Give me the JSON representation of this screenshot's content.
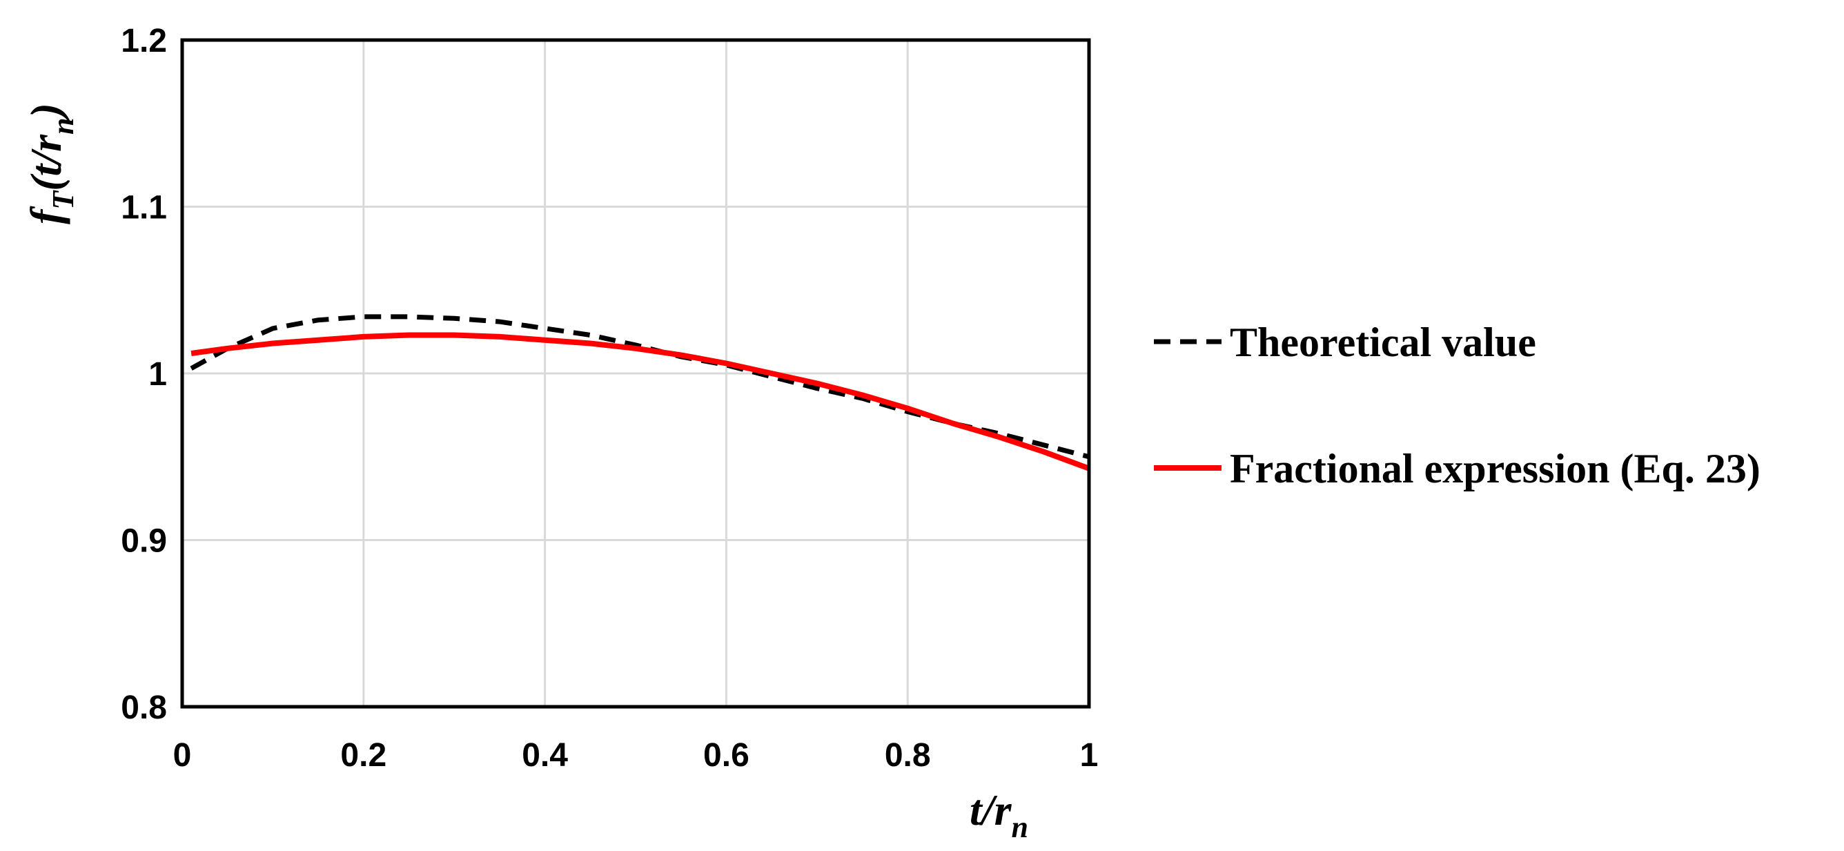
{
  "chart_data": {
    "type": "line",
    "title": "",
    "xlabel": {
      "main": "t/r",
      "sub": "n"
    },
    "ylabel": {
      "f": "f",
      "f_sub": "T",
      "arg_open": "(t/r",
      "arg_sub": "n",
      "arg_close": ")"
    },
    "xlim": [
      0,
      1
    ],
    "ylim": [
      0.8,
      1.2
    ],
    "xticks": [
      0,
      0.2,
      0.4,
      0.6,
      0.8,
      1
    ],
    "xtick_labels": [
      "0",
      "0.2",
      "0.4",
      "0.6",
      "0.8",
      "1"
    ],
    "yticks": [
      0.8,
      0.9,
      1.0,
      1.1,
      1.2
    ],
    "ytick_labels": [
      "0.8",
      "0.9",
      "1",
      "1.1",
      "1.2"
    ],
    "grid": true,
    "legend_position": "right",
    "series": [
      {
        "name": "Theoretical value",
        "style": "dashed",
        "color": "#000000",
        "x": [
          0.01,
          0.05,
          0.1,
          0.15,
          0.2,
          0.25,
          0.3,
          0.35,
          0.4,
          0.45,
          0.5,
          0.55,
          0.6,
          0.65,
          0.7,
          0.75,
          0.8,
          0.85,
          0.9,
          0.95,
          1.0
        ],
        "y": [
          1.003,
          1.015,
          1.027,
          1.032,
          1.034,
          1.034,
          1.033,
          1.031,
          1.027,
          1.023,
          1.017,
          1.01,
          1.005,
          0.998,
          0.991,
          0.985,
          0.977,
          0.97,
          0.964,
          0.957,
          0.95
        ]
      },
      {
        "name": "Fractional expression (Eq. 23)",
        "style": "solid",
        "color": "#ff0000",
        "x": [
          0.01,
          0.05,
          0.1,
          0.15,
          0.2,
          0.25,
          0.3,
          0.35,
          0.4,
          0.45,
          0.5,
          0.55,
          0.6,
          0.65,
          0.7,
          0.75,
          0.8,
          0.85,
          0.9,
          0.95,
          1.0
        ],
        "y": [
          1.012,
          1.015,
          1.018,
          1.02,
          1.022,
          1.023,
          1.023,
          1.022,
          1.02,
          1.018,
          1.015,
          1.011,
          1.006,
          1.0,
          0.994,
          0.987,
          0.979,
          0.97,
          0.962,
          0.953,
          0.943
        ]
      }
    ]
  }
}
